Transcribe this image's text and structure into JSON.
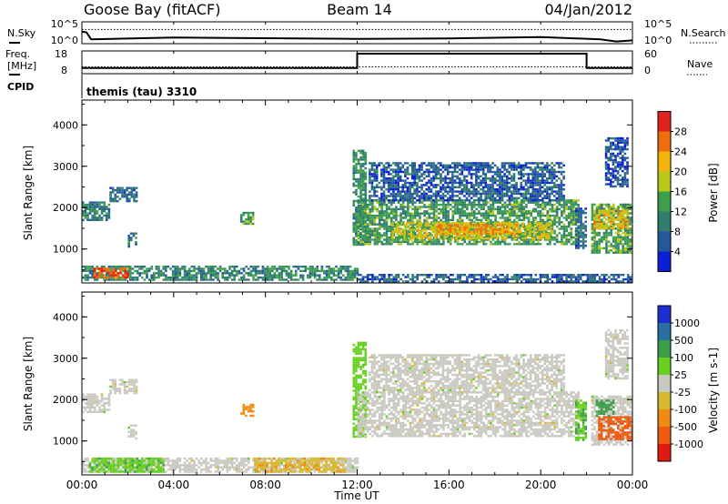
{
  "header": {
    "title": "Goose Bay (fitACF)",
    "beam": "Beam 14",
    "date": "04/Jan/2012"
  },
  "strip_labels": {
    "nsky": "N.Sky",
    "nsearch": "N.Search",
    "freq_line1": "Freq.",
    "freq_line2": "[MHz]",
    "cpid": "CPID",
    "nave": "Nave",
    "cpid_value": "themis (tau) 3310",
    "nsky_ticks": [
      "10^5",
      "10^0"
    ],
    "nsearch_ticks": [
      "10^5",
      "10^0"
    ],
    "freq_ticks": [
      "18",
      "8"
    ],
    "nave_ticks": [
      "60",
      "0"
    ]
  },
  "colors": {
    "power_scale": [
      "#0a1fd6",
      "#24589a",
      "#2f7d6d",
      "#3d9f4c",
      "#b7c918",
      "#f3b40a",
      "#ef6d0c",
      "#e0231a"
    ],
    "velocity_scale": [
      "#1c2fd0",
      "#2a6fa4",
      "#3b9e48",
      "#66d020",
      "#c9c9c0",
      "#d8b830",
      "#f08a10",
      "#ef5a10",
      "#e01a12"
    ],
    "ground_scatter": "#c9c9c0"
  },
  "chart_data": [
    {
      "type": "line",
      "name": "noise-strip",
      "x_unit": "hours UT",
      "series": [
        {
          "name": "N.Sky",
          "x": [
            0,
            0.2,
            0.4,
            4,
            8,
            12,
            16,
            20,
            22.6,
            23.3,
            24
          ],
          "y": [
            0.55,
            0.52,
            0.2,
            0.28,
            0.25,
            0.22,
            0.24,
            0.3,
            0.2,
            0.1,
            0.15
          ]
        },
        {
          "name": "N.Search",
          "x": [
            0,
            24
          ],
          "y": [
            0.65,
            0.65
          ]
        }
      ]
    },
    {
      "type": "line",
      "name": "freq-nave-strip",
      "x_unit": "hours UT",
      "series": [
        {
          "name": "Freq.",
          "x": [
            0,
            12,
            12,
            22,
            22,
            24
          ],
          "y": [
            10.5,
            10.5,
            16.8,
            16.8,
            10.5,
            10.5
          ]
        },
        {
          "name": "Nave",
          "x": [
            0,
            24
          ],
          "y": [
            18,
            18
          ]
        }
      ]
    },
    {
      "type": "heatmap",
      "name": "power",
      "xlim": [
        0,
        24
      ],
      "ylim": [
        180,
        4600
      ],
      "x_ticks": [
        "00:00",
        "04:00",
        "08:00",
        "12:00",
        "16:00",
        "20:00",
        "00:00"
      ],
      "y_ticks": [
        "1000",
        "2000",
        "3000",
        "4000"
      ],
      "ylabel": "Slant Range [km]",
      "colorbar_label": "Power [dB]",
      "colorbar_ticks": [
        "4",
        "8",
        "12",
        "16",
        "20",
        "24",
        "28"
      ],
      "zlim": [
        0,
        30
      ],
      "regions": [
        {
          "t0": 0.0,
          "t1": 1.2,
          "r0": 1700,
          "r1": 2150,
          "power": 9
        },
        {
          "t0": 1.2,
          "t1": 2.4,
          "r0": 2150,
          "r1": 2500,
          "power": 7
        },
        {
          "t0": 2.0,
          "t1": 2.4,
          "r0": 1050,
          "r1": 1400,
          "power": 8
        },
        {
          "t0": 6.9,
          "t1": 7.5,
          "r0": 1600,
          "r1": 1900,
          "power": 12
        },
        {
          "t0": 0.0,
          "t1": 12.0,
          "r0": 280,
          "r1": 600,
          "power": 10
        },
        {
          "t0": 0.5,
          "t1": 2.0,
          "r0": 300,
          "r1": 550,
          "power": 26
        },
        {
          "t0": 11.8,
          "t1": 12.4,
          "r0": 1100,
          "r1": 3400,
          "power": 11
        },
        {
          "t0": 12.0,
          "t1": 21.6,
          "r0": 1100,
          "r1": 2200,
          "power": 12
        },
        {
          "t0": 12.5,
          "t1": 21.0,
          "r0": 2200,
          "r1": 3100,
          "power": 6
        },
        {
          "t0": 13.5,
          "t1": 20.5,
          "r0": 1250,
          "r1": 1650,
          "power": 18
        },
        {
          "t0": 15.5,
          "t1": 19.0,
          "r0": 1350,
          "r1": 1600,
          "power": 22
        },
        {
          "t0": 21.5,
          "t1": 22.0,
          "r0": 1000,
          "r1": 2000,
          "power": 7
        },
        {
          "t0": 22.2,
          "t1": 24.0,
          "r0": 900,
          "r1": 2100,
          "power": 13
        },
        {
          "t0": 22.3,
          "t1": 23.8,
          "r0": 1500,
          "r1": 1950,
          "power": 20
        },
        {
          "t0": 22.8,
          "t1": 23.8,
          "r0": 2500,
          "r1": 3700,
          "power": 5
        },
        {
          "t0": 12.0,
          "t1": 24.0,
          "r0": 200,
          "r1": 400,
          "power": 6
        }
      ]
    },
    {
      "type": "heatmap",
      "name": "velocity",
      "xlim": [
        0,
        24
      ],
      "ylim": [
        180,
        4600
      ],
      "x_ticks": [
        "00:00",
        "04:00",
        "08:00",
        "12:00",
        "16:00",
        "20:00",
        "00:00"
      ],
      "y_ticks": [
        "1000",
        "2000",
        "3000",
        "4000"
      ],
      "ylabel": "Slant Range [km]",
      "xlabel": "Time UT",
      "colorbar_label": "Velocity [m s-1]",
      "colorbar_ticks": [
        "1000",
        "500",
        "100",
        "25",
        "-25",
        "-100",
        "-500",
        "-1000"
      ],
      "regions": [
        {
          "t0": 0.0,
          "t1": 1.2,
          "r0": 1700,
          "r1": 2150,
          "velocity": 0,
          "ground": true
        },
        {
          "t0": 1.2,
          "t1": 2.4,
          "r0": 2150,
          "r1": 2500,
          "velocity": 0,
          "ground": true
        },
        {
          "t0": 2.0,
          "t1": 2.4,
          "r0": 1050,
          "r1": 1400,
          "velocity": 0,
          "ground": true
        },
        {
          "t0": 6.9,
          "t1": 7.5,
          "r0": 1600,
          "r1": 1900,
          "velocity": -150
        },
        {
          "t0": 0.0,
          "t1": 12.0,
          "r0": 280,
          "r1": 600,
          "velocity": 0,
          "ground": true
        },
        {
          "t0": 0.3,
          "t1": 3.5,
          "r0": 280,
          "r1": 600,
          "velocity": 80
        },
        {
          "t0": 7.5,
          "t1": 11.5,
          "r0": 280,
          "r1": 600,
          "velocity": -80
        },
        {
          "t0": 11.8,
          "t1": 12.4,
          "r0": 1100,
          "r1": 3400,
          "velocity": 60
        },
        {
          "t0": 12.0,
          "t1": 21.6,
          "r0": 1100,
          "r1": 2200,
          "velocity": 0,
          "ground": true
        },
        {
          "t0": 12.5,
          "t1": 21.0,
          "r0": 2200,
          "r1": 3100,
          "velocity": 0,
          "ground": true
        },
        {
          "t0": 21.5,
          "t1": 22.0,
          "r0": 1000,
          "r1": 2000,
          "velocity": 80
        },
        {
          "t0": 22.2,
          "t1": 24.0,
          "r0": 900,
          "r1": 2100,
          "velocity": 0,
          "ground": true
        },
        {
          "t0": 22.5,
          "t1": 24.0,
          "r0": 1050,
          "r1": 1600,
          "velocity": -700
        },
        {
          "t0": 22.4,
          "t1": 23.2,
          "r0": 1600,
          "r1": 2000,
          "velocity": 200
        },
        {
          "t0": 22.8,
          "t1": 23.8,
          "r0": 2500,
          "r1": 3700,
          "velocity": 0,
          "ground": true
        }
      ]
    }
  ]
}
